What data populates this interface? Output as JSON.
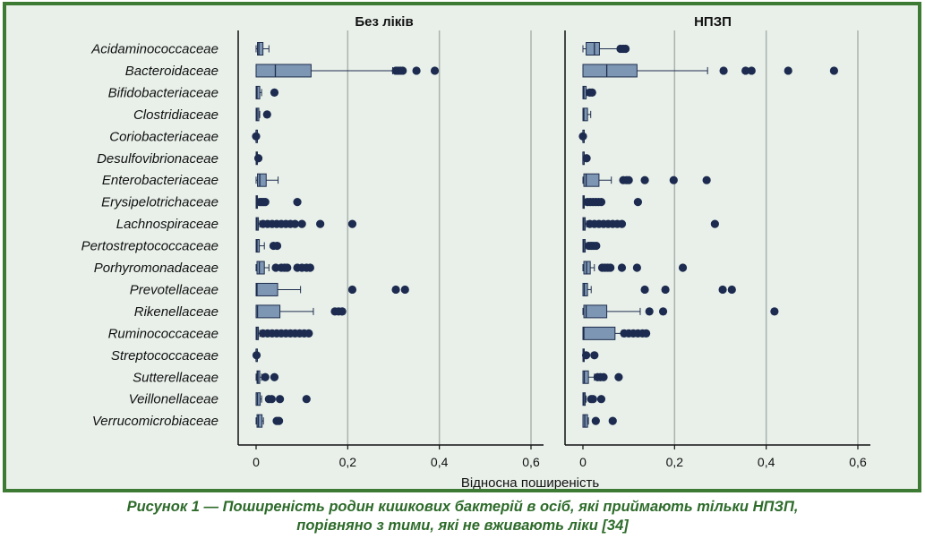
{
  "caption": {
    "line1": "Рисунок 1 — Поширеність родин кишкових бактерій в осіб, які приймають тільки НПЗП,",
    "line2": "порівняно з тими, які не вживають ліки [34]"
  },
  "colors": {
    "frame": "#3d7a33",
    "background": "#e9f0ea",
    "box_fill": "#7d96b3",
    "box_stroke": "#1e2d4d",
    "outlier": "#1c2b4f",
    "grid": "#a9b3ad",
    "caption": "#2d6b2a"
  },
  "chart_data": {
    "type": "box",
    "xlabel": "Відносна поширеність",
    "xlim": [
      0,
      0.6
    ],
    "xticks": [
      0,
      0.2,
      0.4,
      0.6
    ],
    "xtick_labels": [
      "0",
      "0,2",
      "0,4",
      "0,6"
    ],
    "grid": true,
    "categories": [
      "Acidaminococcaceae",
      "Bacteroidaceae",
      "Bifidobacteriaceae",
      "Clostridiaceae",
      "Coriobacteriaceae",
      "Desulfovibrionaceae",
      "Enterobacteriaceae",
      "Erysipelotrichaceae",
      "Lachnospiraceae",
      "Pertostreptococcaceae",
      "Porhyromonadaceae",
      "Prevotellaceae",
      "Rikenellaceae",
      "Ruminococcaceae",
      "Streptococcaceae",
      "Sutterellaceae",
      "Veillonellaceae",
      "Verrucomicrobiaceae"
    ],
    "panels": [
      {
        "title": "Без ліків",
        "boxes": [
          {
            "whisker_low": 0,
            "q1": 0.003,
            "median": 0.006,
            "q3": 0.015,
            "whisker_high": 0.028,
            "outliers": []
          },
          {
            "whisker_low": 0,
            "q1": 0.0,
            "median": 0.042,
            "q3": 0.12,
            "whisker_high": 0.298,
            "outliers": [
              0.305,
              0.31,
              0.315,
              0.32,
              0.35,
              0.39
            ]
          },
          {
            "whisker_low": 0,
            "q1": 0.0,
            "median": 0.002,
            "q3": 0.008,
            "whisker_high": 0.012,
            "outliers": [
              0.04
            ]
          },
          {
            "whisker_low": 0,
            "q1": 0.0,
            "median": 0.002,
            "q3": 0.006,
            "whisker_high": 0.008,
            "outliers": [
              0.024
            ]
          },
          {
            "whisker_low": 0,
            "q1": 0,
            "median": 0,
            "q3": 0,
            "whisker_high": 0,
            "outliers": [
              0.0
            ]
          },
          {
            "whisker_low": 0,
            "q1": 0,
            "median": 0.001,
            "q3": 0.002,
            "whisker_high": 0.003,
            "outliers": [
              0.005
            ]
          },
          {
            "whisker_low": 0,
            "q1": 0.003,
            "median": 0.008,
            "q3": 0.022,
            "whisker_high": 0.048,
            "outliers": []
          },
          {
            "whisker_low": 0,
            "q1": 0.0,
            "median": 0.001,
            "q3": 0.003,
            "whisker_high": 0.005,
            "outliers": [
              0.008,
              0.012,
              0.016,
              0.02,
              0.09
            ]
          },
          {
            "whisker_low": 0,
            "q1": 0.0,
            "median": 0.002,
            "q3": 0.005,
            "whisker_high": 0.008,
            "outliers": [
              0.015,
              0.025,
              0.035,
              0.045,
              0.055,
              0.065,
              0.075,
              0.085,
              0.1,
              0.14,
              0.21
            ]
          },
          {
            "whisker_low": 0,
            "q1": 0.0,
            "median": 0.002,
            "q3": 0.007,
            "whisker_high": 0.018,
            "outliers": [
              0.038,
              0.046
            ]
          },
          {
            "whisker_low": 0,
            "q1": 0.002,
            "median": 0.007,
            "q3": 0.018,
            "whisker_high": 0.028,
            "outliers": [
              0.043,
              0.055,
              0.062,
              0.068,
              0.09,
              0.1,
              0.11,
              0.118
            ]
          },
          {
            "whisker_low": 0,
            "q1": 0.0,
            "median": 0.002,
            "q3": 0.047,
            "whisker_high": 0.097,
            "outliers": [
              0.21,
              0.305,
              0.325
            ]
          },
          {
            "whisker_low": 0,
            "q1": 0.0,
            "median": 0.003,
            "q3": 0.052,
            "whisker_high": 0.125,
            "outliers": [
              0.172,
              0.18,
              0.188
            ]
          },
          {
            "whisker_low": 0,
            "q1": 0.0,
            "median": 0.002,
            "q3": 0.005,
            "whisker_high": 0.008,
            "outliers": [
              0.015,
              0.025,
              0.035,
              0.045,
              0.055,
              0.065,
              0.075,
              0.085,
              0.095,
              0.105,
              0.115
            ]
          },
          {
            "whisker_low": 0,
            "q1": 0,
            "median": 0,
            "q3": 0,
            "whisker_high": 0,
            "outliers": [
              0.001
            ]
          },
          {
            "whisker_low": 0,
            "q1": 0.002,
            "median": 0.004,
            "q3": 0.008,
            "whisker_high": 0.012,
            "outliers": [
              0.02,
              0.04
            ]
          },
          {
            "whisker_low": 0,
            "q1": 0.0,
            "median": 0.003,
            "q3": 0.009,
            "whisker_high": 0.012,
            "outliers": [
              0.028,
              0.034,
              0.052,
              0.11
            ]
          },
          {
            "whisker_low": 0,
            "q1": 0.002,
            "median": 0.005,
            "q3": 0.013,
            "whisker_high": 0.016,
            "outliers": [
              0.045,
              0.05
            ]
          }
        ]
      },
      {
        "title": "НПЗП",
        "boxes": [
          {
            "whisker_low": 0,
            "q1": 0.007,
            "median": 0.025,
            "q3": 0.036,
            "whisker_high": 0.078,
            "outliers": [
              0.082,
              0.088,
              0.093
            ]
          },
          {
            "whisker_low": 0,
            "q1": 0.0,
            "median": 0.052,
            "q3": 0.118,
            "whisker_high": 0.272,
            "outliers": [
              0.307,
              0.355,
              0.368,
              0.448,
              0.548
            ]
          },
          {
            "whisker_low": 0,
            "q1": 0.0,
            "median": 0.002,
            "q3": 0.007,
            "whisker_high": 0.008,
            "outliers": [
              0.015,
              0.02
            ]
          },
          {
            "whisker_low": 0,
            "q1": 0.0,
            "median": 0.002,
            "q3": 0.01,
            "whisker_high": 0.017,
            "outliers": []
          },
          {
            "whisker_low": 0,
            "q1": 0,
            "median": 0,
            "q3": 0,
            "whisker_high": 0,
            "outliers": [
              0.0
            ]
          },
          {
            "whisker_low": 0,
            "q1": 0,
            "median": 0,
            "q3": 0.001,
            "whisker_high": 0.002,
            "outliers": [
              0.008
            ]
          },
          {
            "whisker_low": 0,
            "q1": 0.002,
            "median": 0.007,
            "q3": 0.035,
            "whisker_high": 0.062,
            "outliers": [
              0.088,
              0.095,
              0.1,
              0.135,
              0.198,
              0.27
            ]
          },
          {
            "whisker_low": 0,
            "q1": 0.0,
            "median": 0.001,
            "q3": 0.003,
            "whisker_high": 0.005,
            "outliers": [
              0.01,
              0.016,
              0.022,
              0.028,
              0.034,
              0.04,
              0.12
            ]
          },
          {
            "whisker_low": 0,
            "q1": 0.0,
            "median": 0.002,
            "q3": 0.005,
            "whisker_high": 0.008,
            "outliers": [
              0.015,
              0.025,
              0.035,
              0.045,
              0.055,
              0.065,
              0.075,
              0.085,
              0.288
            ]
          },
          {
            "whisker_low": 0,
            "q1": 0.0,
            "median": 0.002,
            "q3": 0.005,
            "whisker_high": 0.008,
            "outliers": [
              0.013,
              0.018,
              0.023,
              0.029
            ]
          },
          {
            "whisker_low": 0,
            "q1": 0.002,
            "median": 0.008,
            "q3": 0.016,
            "whisker_high": 0.025,
            "outliers": [
              0.042,
              0.048,
              0.054,
              0.06,
              0.085,
              0.118,
              0.218
            ]
          },
          {
            "whisker_low": 0,
            "q1": 0.0,
            "median": 0.003,
            "q3": 0.01,
            "whisker_high": 0.018,
            "outliers": [
              0.135,
              0.18,
              0.305,
              0.325
            ]
          },
          {
            "whisker_low": 0,
            "q1": 0.002,
            "median": 0.007,
            "q3": 0.052,
            "whisker_high": 0.125,
            "outliers": [
              0.145,
              0.175,
              0.418
            ]
          },
          {
            "whisker_low": 0,
            "q1": 0.0,
            "median": 0.002,
            "q3": 0.07,
            "whisker_high": 0.085,
            "outliers": [
              0.09,
              0.1,
              0.11,
              0.12,
              0.13,
              0.138
            ]
          },
          {
            "whisker_low": 0,
            "q1": 0,
            "median": 0.001,
            "q3": 0.002,
            "whisker_high": 0.003,
            "outliers": [
              0.007,
              0.025
            ]
          },
          {
            "whisker_low": 0,
            "q1": 0.0,
            "median": 0.003,
            "q3": 0.012,
            "whisker_high": 0.025,
            "outliers": [
              0.032,
              0.038,
              0.045,
              0.078
            ]
          },
          {
            "whisker_low": 0,
            "q1": 0.0,
            "median": 0.002,
            "q3": 0.005,
            "whisker_high": 0.007,
            "outliers": [
              0.018,
              0.022,
              0.04
            ]
          },
          {
            "whisker_low": 0,
            "q1": 0.0,
            "median": 0.004,
            "q3": 0.01,
            "whisker_high": 0.012,
            "outliers": [
              0.028,
              0.065
            ]
          }
        ]
      }
    ]
  }
}
